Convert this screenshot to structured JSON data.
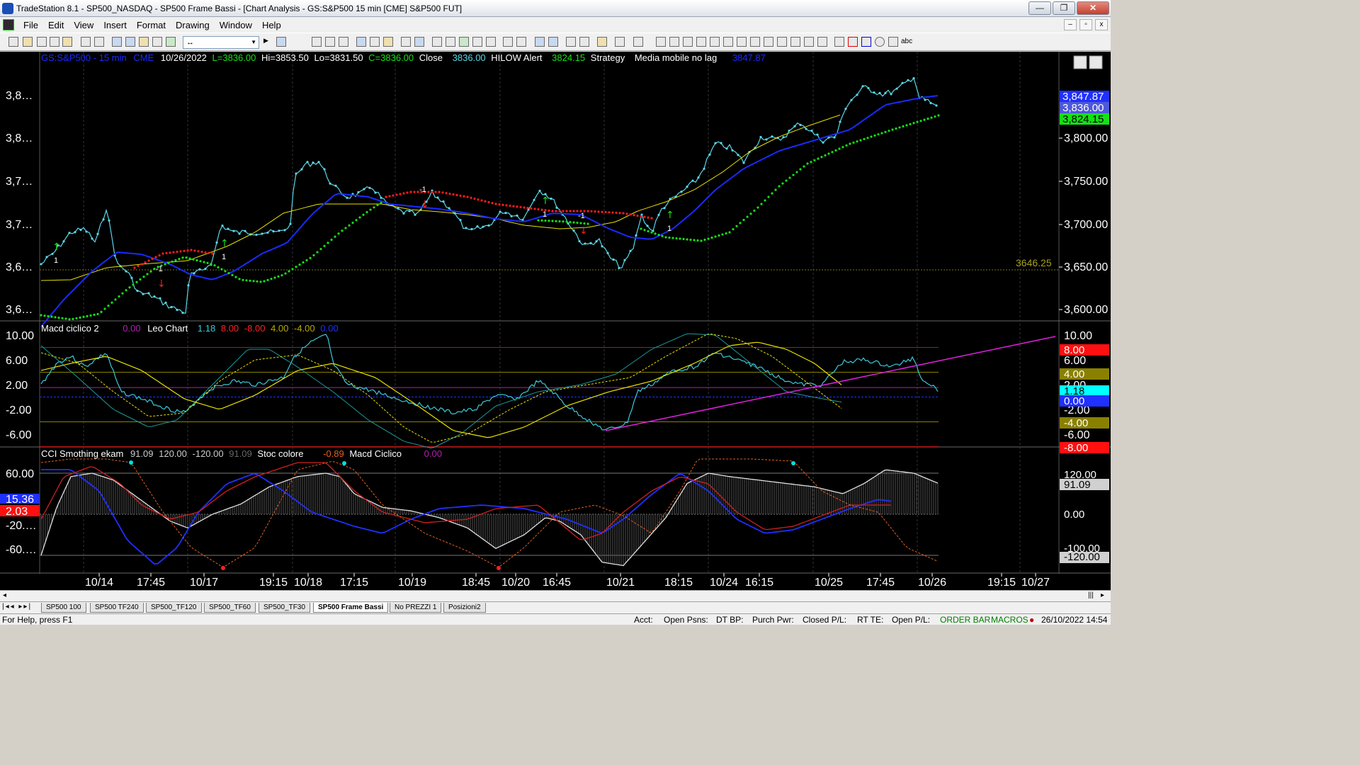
{
  "window": {
    "title": "TradeStation 8.1 - SP500_NASDAQ - SP500 Frame Bassi - [Chart Analysis - GS:S&P500  15 min  [CME] S&P500 FUT]",
    "minimize": "—",
    "maximize": "❐",
    "close": "✕"
  },
  "menu": [
    "File",
    "Edit",
    "View",
    "Insert",
    "Format",
    "Drawing",
    "Window",
    "Help"
  ],
  "toolbar": {
    "combo_value": "↔",
    "abc_label": "abc"
  },
  "chart": {
    "symbol": "GS:S&P500",
    "interval": "- 15 min",
    "exchange": "CME",
    "date": "10/26/2022",
    "last": "L=3836.00",
    "high": "Hi=3853.50",
    "low": "Lo=3831.50",
    "close_v": "C=3836.00",
    "close_label": "Close",
    "close_value": "3836.00",
    "hilow_label": "HILOW Alert",
    "hilow_value": "3824.15",
    "strategy_label": "Strategy",
    "media_label": "Media mobile no lag",
    "media_value": "3847.87",
    "level_line_value": "3646.25",
    "price_axis": [
      "3,800.00",
      "3,750.00",
      "3,700.00",
      "3,650.00",
      "3,600.00"
    ],
    "left_axis": [
      "3,8…",
      "3,8…",
      "3,7…",
      "3,7…",
      "3,6…",
      "3,6…"
    ],
    "price_badges": [
      "3,847.87",
      "3,836.00",
      "3,824.15"
    ],
    "macd_panel": {
      "name": "Macd ciclico 2",
      "v1": "0.00",
      "name2": "Leo Chart",
      "v2": "1.18",
      "v3": "8.00",
      "v4": "-8.00",
      "v5": "4.00",
      "v6": "-4.00",
      "v7": "0.00",
      "axis": [
        "10.00",
        "6.00",
        "2.00",
        "-2.00",
        "-6.00"
      ],
      "badges": [
        "8.00",
        "4.00",
        "1.18",
        "0.00",
        "-4.00",
        "-8.00"
      ]
    },
    "cci_panel": {
      "name": "CCI Smothing ekam",
      "v1": "91.09",
      "v2": "120.00",
      "v3": "-120.00",
      "v4": "91.09",
      "name2": "Stoc colore",
      "v5": "-0.89",
      "name3": "Macd Ciclico",
      "v6": "0.00",
      "left_axis": [
        "60.00",
        "15.36",
        "2.03",
        "-20.…",
        "-60.…"
      ],
      "axis": [
        "120.00",
        "91.09",
        "0.00",
        "-100.00",
        "-120.00"
      ]
    },
    "x_axis": [
      "10/14",
      "17:45",
      "10/17",
      "19:15",
      "10/18",
      "17:15",
      "10/19",
      "18:45",
      "10/20",
      "16:45",
      "10/21",
      "18:15",
      "10/24",
      "16:15",
      "10/25",
      "17:45",
      "10/26",
      "19:15",
      "10/27"
    ],
    "markers": {
      "up": "1",
      "down": "-1"
    },
    "colors": {
      "bg": "#000000",
      "price": "#5ad7e8",
      "ma_blue": "#1a2bff",
      "ma_yellow": "#e8e000",
      "hilo_green": "#16e016",
      "hilo_red": "#ff1c1c",
      "macd": "#3cc8d8",
      "magenta": "#e020e0"
    }
  },
  "sheets": [
    "SP500 100",
    "SP500 TF240",
    "SP500_TF120",
    "SP500_TF60",
    "SP500_TF30",
    "SP500 Frame Bassi",
    "No PREZZI 1",
    "Posizioni2"
  ],
  "active_sheet": "SP500 Frame Bassi",
  "status": {
    "help": "For Help, press F1",
    "acct": "Acct:",
    "open_psns": "Open Psns:",
    "dt_bp": "DT BP:",
    "purch_pwr": "Purch Pwr:",
    "closed_pl": "Closed P/L:",
    "rt_te": "RT TE:",
    "open_pl": "Open P/L:",
    "order_bar": "ORDER BAR",
    "macros": "MACROS",
    "datetime": "26/10/2022 14:54"
  }
}
